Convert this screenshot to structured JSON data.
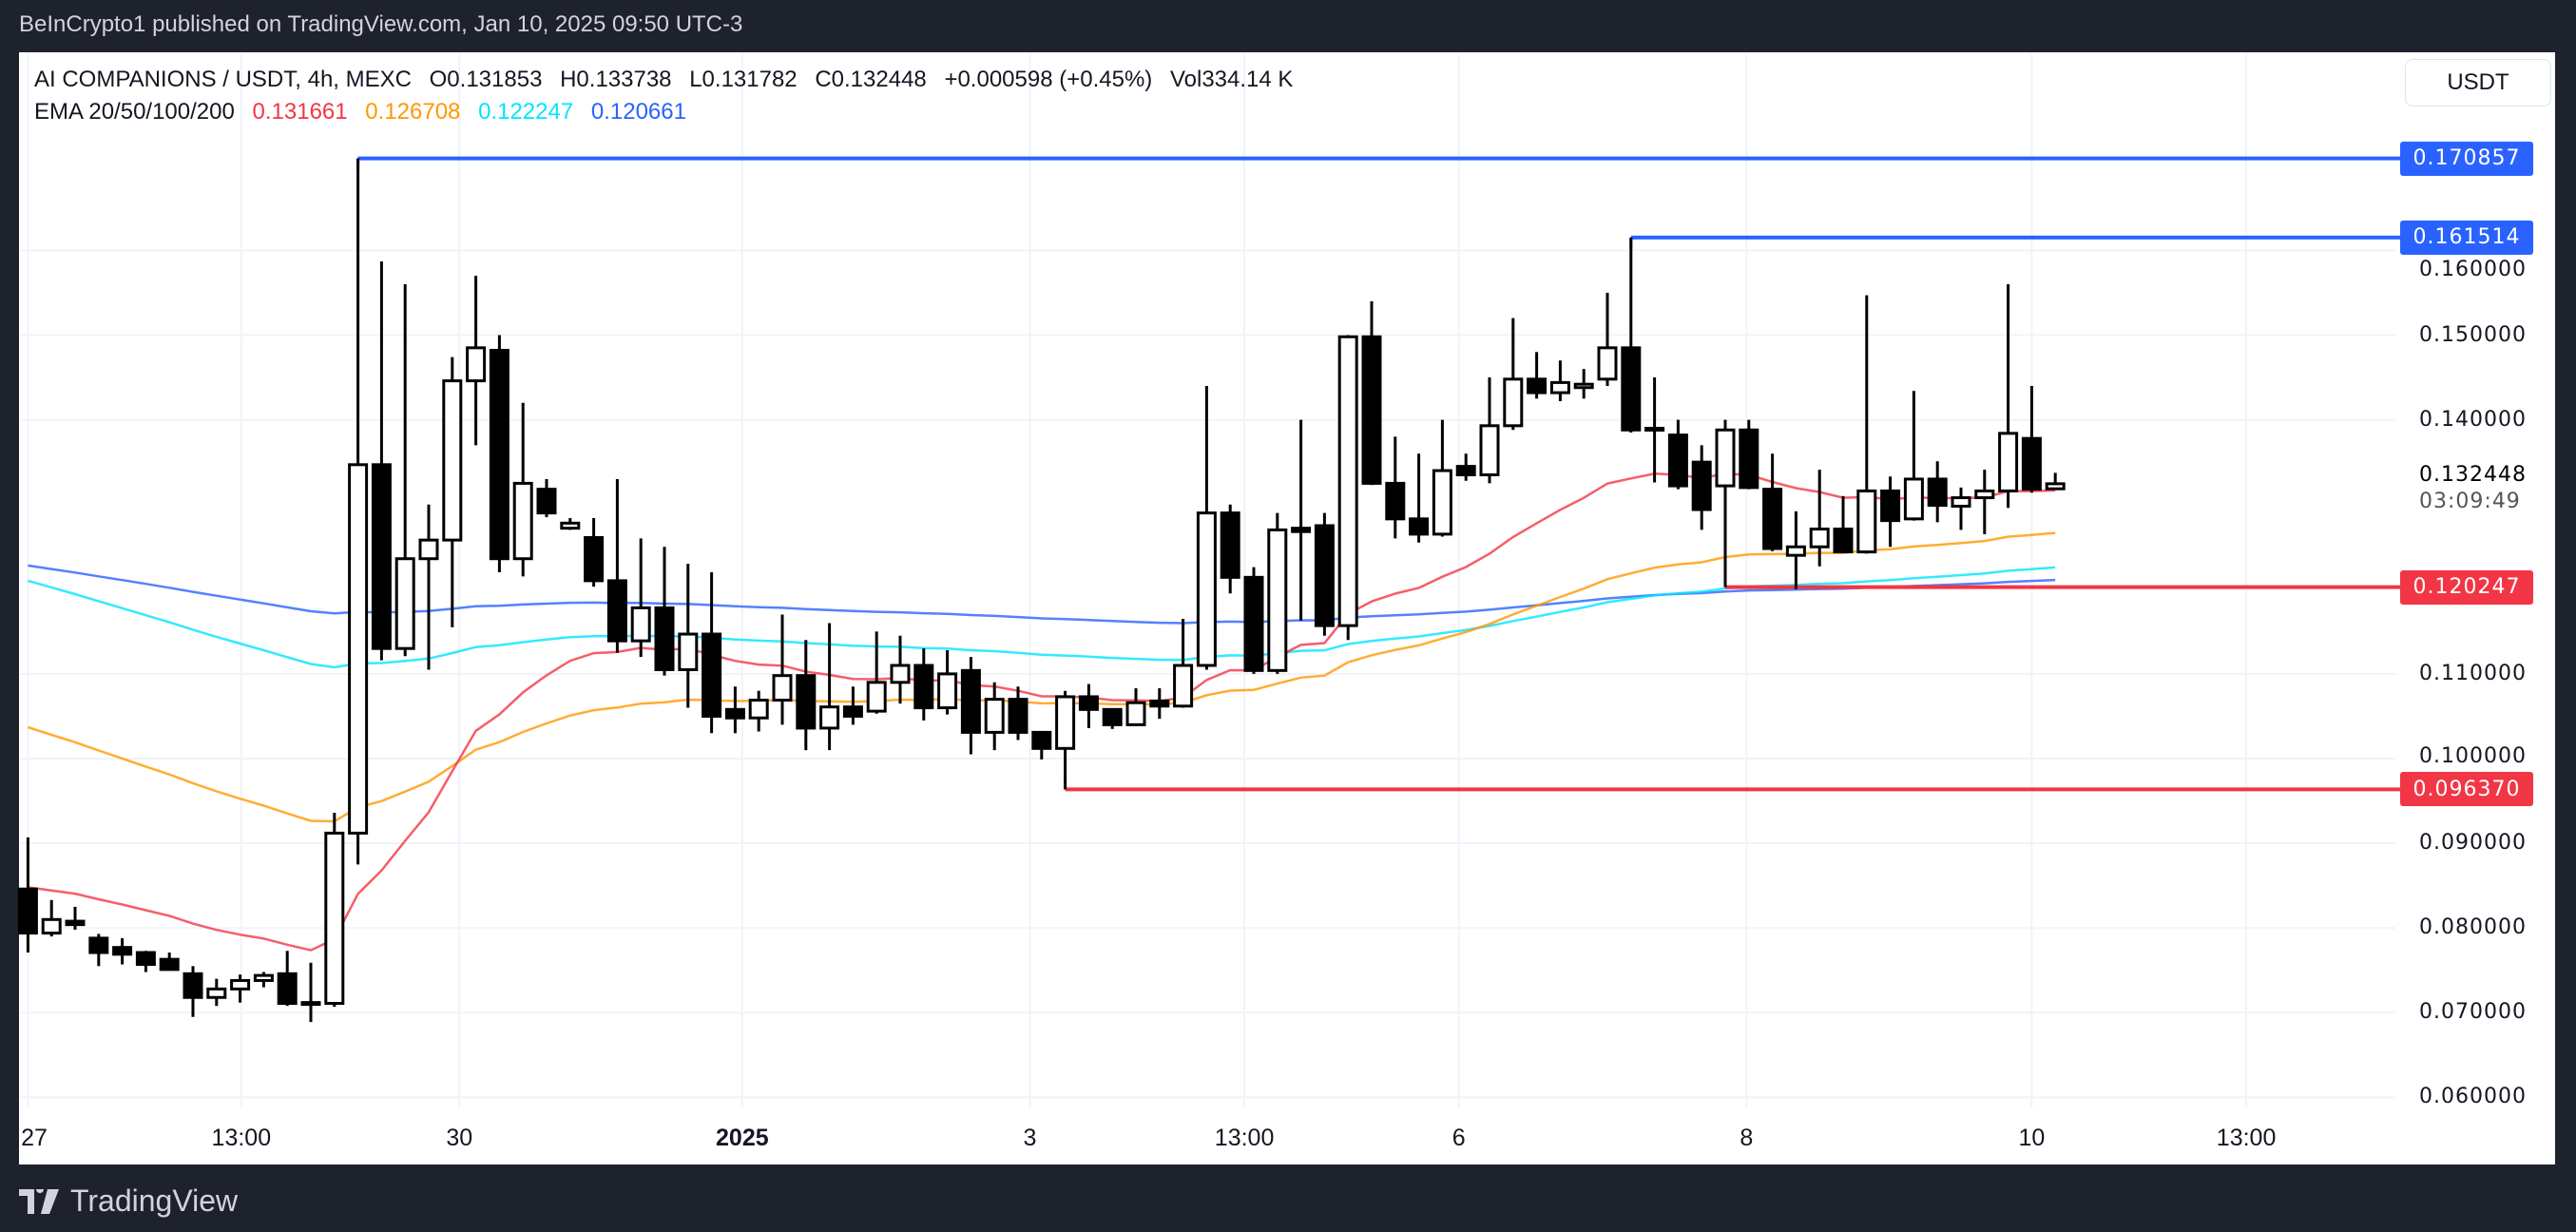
{
  "publish_line": "BeInCrypto1 published on TradingView.com, Jan 10, 2025 09:50 UTC-3",
  "legend": {
    "symbol": "AI COMPANIONS / USDT, 4h, MEXC",
    "open": "O0.131853",
    "high": "H0.133738",
    "low": "L0.131782",
    "close": "C0.132448",
    "change": "+0.000598 (+0.45%)",
    "volume": "Vol334.14 K",
    "ema_label": "EMA 20/50/100/200",
    "ema_values": [
      "0.131661",
      "0.126708",
      "0.122247",
      "0.120661"
    ]
  },
  "currency_button": "USDT",
  "branding": "TradingView",
  "colors": {
    "ema20": "#f23645",
    "ema50": "#ff9800",
    "ema100": "#00e5ff",
    "ema200": "#2962ff",
    "resistance": "#2962ff",
    "support": "#f23645",
    "candle_up": "#ffffff",
    "candle_down": "#000000"
  },
  "chart_data": {
    "type": "candlestick",
    "interval": "4h",
    "ylim": [
      0.055,
      0.176
    ],
    "grid": true,
    "y_ticks": [
      "0.060000",
      "0.070000",
      "0.080000",
      "0.090000",
      "0.100000",
      "0.110000",
      "0.140000",
      "0.150000",
      "0.160000"
    ],
    "x_ticks": [
      "27",
      "13:00",
      "30",
      "2025",
      "3",
      "13:00",
      "6",
      "8",
      "10",
      "13:00"
    ],
    "last_price": "0.132448",
    "countdown": "03:09:49",
    "candles_ohlc": [
      [
        0.0846,
        0.0907,
        0.0771,
        0.0794
      ],
      [
        0.0794,
        0.0833,
        0.079,
        0.081
      ],
      [
        0.0808,
        0.0825,
        0.0798,
        0.0804
      ],
      [
        0.0788,
        0.0793,
        0.0755,
        0.0771
      ],
      [
        0.0777,
        0.0788,
        0.0757,
        0.0769
      ],
      [
        0.0771,
        0.0773,
        0.0748,
        0.0757
      ],
      [
        0.0763,
        0.0771,
        0.0752,
        0.0751
      ],
      [
        0.0746,
        0.0755,
        0.0695,
        0.0718
      ],
      [
        0.0718,
        0.074,
        0.0708,
        0.0728
      ],
      [
        0.0728,
        0.0745,
        0.0712,
        0.0738
      ],
      [
        0.0738,
        0.0748,
        0.073,
        0.0744
      ],
      [
        0.0746,
        0.0773,
        0.0708,
        0.0711
      ],
      [
        0.071,
        0.0759,
        0.0689,
        0.0712
      ],
      [
        0.0711,
        0.0936,
        0.0707,
        0.0912
      ],
      [
        0.0912,
        0.170857,
        0.0875,
        0.1347
      ],
      [
        0.1347,
        0.1587,
        0.1116,
        0.113
      ],
      [
        0.113,
        0.156,
        0.1121,
        0.1236
      ],
      [
        0.1236,
        0.13,
        0.1105,
        0.1258
      ],
      [
        0.1258,
        0.1474,
        0.1155,
        0.1446
      ],
      [
        0.1446,
        0.157,
        0.137,
        0.1485
      ],
      [
        0.1482,
        0.15,
        0.122,
        0.1236
      ],
      [
        0.1236,
        0.142,
        0.1215,
        0.1325
      ],
      [
        0.1318,
        0.133,
        0.1285,
        0.129
      ],
      [
        0.1272,
        0.1284,
        0.127,
        0.1278
      ],
      [
        0.1261,
        0.1284,
        0.1203,
        0.121
      ],
      [
        0.121,
        0.133,
        0.1125,
        0.1139
      ],
      [
        0.1139,
        0.126,
        0.112,
        0.1178
      ],
      [
        0.1178,
        0.125,
        0.1098,
        0.1105
      ],
      [
        0.1105,
        0.123,
        0.106,
        0.1147
      ],
      [
        0.1147,
        0.122,
        0.103,
        0.105
      ],
      [
        0.1058,
        0.1085,
        0.103,
        0.1048
      ],
      [
        0.1048,
        0.108,
        0.1032,
        0.1069
      ],
      [
        0.1069,
        0.117,
        0.104,
        0.1098
      ],
      [
        0.1098,
        0.114,
        0.101,
        0.1036
      ],
      [
        0.1036,
        0.116,
        0.101,
        0.1061
      ],
      [
        0.1061,
        0.1085,
        0.104,
        0.105
      ],
      [
        0.1056,
        0.115,
        0.1053,
        0.109
      ],
      [
        0.109,
        0.1145,
        0.1065,
        0.111
      ],
      [
        0.111,
        0.113,
        0.1045,
        0.106
      ],
      [
        0.106,
        0.1128,
        0.1052,
        0.11
      ],
      [
        0.1104,
        0.112,
        0.1005,
        0.1031
      ],
      [
        0.1031,
        0.109,
        0.101,
        0.107
      ],
      [
        0.107,
        0.1085,
        0.1022,
        0.1031
      ],
      [
        0.1031,
        0.1032,
        0.0999,
        0.1012
      ],
      [
        0.1012,
        0.108,
        0.09637,
        0.1073
      ],
      [
        0.1073,
        0.1088,
        0.1036,
        0.1058
      ],
      [
        0.1058,
        0.1058,
        0.1035,
        0.104
      ],
      [
        0.104,
        0.1083,
        0.104,
        0.1066
      ],
      [
        0.1068,
        0.1083,
        0.1047,
        0.1062
      ],
      [
        0.1062,
        0.1165,
        0.106,
        0.111
      ],
      [
        0.111,
        0.144,
        0.1105,
        0.129
      ],
      [
        0.129,
        0.13,
        0.1195,
        0.1214
      ],
      [
        0.1214,
        0.1226,
        0.11,
        0.1104
      ],
      [
        0.1104,
        0.129,
        0.11,
        0.127
      ],
      [
        0.1272,
        0.14,
        0.1163,
        0.1268
      ],
      [
        0.1275,
        0.129,
        0.1145,
        0.1157
      ],
      [
        0.1157,
        0.15,
        0.114,
        0.1498
      ],
      [
        0.1498,
        0.154,
        0.1323,
        0.1325
      ],
      [
        0.1325,
        0.138,
        0.126,
        0.1283
      ],
      [
        0.1283,
        0.136,
        0.1255,
        0.1265
      ],
      [
        0.1265,
        0.14,
        0.1262,
        0.134
      ],
      [
        0.1345,
        0.136,
        0.1328,
        0.1335
      ],
      [
        0.1335,
        0.145,
        0.1325,
        0.1393
      ],
      [
        0.1393,
        0.152,
        0.1388,
        0.1448
      ],
      [
        0.1448,
        0.148,
        0.1425,
        0.1432
      ],
      [
        0.1432,
        0.147,
        0.1422,
        0.1444
      ],
      [
        0.1438,
        0.146,
        0.1425,
        0.1442
      ],
      [
        0.1448,
        0.155,
        0.144,
        0.1485
      ],
      [
        0.1485,
        0.161514,
        0.1385,
        0.1388
      ],
      [
        0.1388,
        0.145,
        0.1326,
        0.139
      ],
      [
        0.1382,
        0.14,
        0.1318,
        0.1322
      ],
      [
        0.135,
        0.137,
        0.127,
        0.1294
      ],
      [
        0.1322,
        0.14,
        0.120247,
        0.1388
      ],
      [
        0.1388,
        0.14,
        0.1318,
        0.132
      ],
      [
        0.1318,
        0.136,
        0.1245,
        0.1248
      ],
      [
        0.124,
        0.1292,
        0.12,
        0.125
      ],
      [
        0.125,
        0.1341,
        0.1227,
        0.1271
      ],
      [
        0.1271,
        0.131,
        0.1244,
        0.1244
      ],
      [
        0.1244,
        0.1547,
        0.1242,
        0.1316
      ],
      [
        0.1316,
        0.1333,
        0.125,
        0.1281
      ],
      [
        0.1283,
        0.1434,
        0.1281,
        0.133
      ],
      [
        0.133,
        0.1351,
        0.1279,
        0.1299
      ],
      [
        0.1298,
        0.132,
        0.127,
        0.1308
      ],
      [
        0.1308,
        0.1341,
        0.1265,
        0.1316
      ],
      [
        0.1316,
        0.156,
        0.1296,
        0.1384
      ],
      [
        0.1378,
        0.144,
        0.1314,
        0.1318
      ],
      [
        0.131853,
        0.133738,
        0.131782,
        0.132448
      ]
    ],
    "ema_start": {
      "ema20": 0.0848,
      "ema50": 0.1037,
      "ema100": 0.121,
      "ema200": 0.1228
    },
    "horizontal_levels": [
      {
        "price": "0.170857",
        "type": "resistance"
      },
      {
        "price": "0.161514",
        "type": "resistance"
      },
      {
        "price": "0.120247",
        "type": "support"
      },
      {
        "price": "0.096370",
        "type": "support"
      }
    ]
  }
}
